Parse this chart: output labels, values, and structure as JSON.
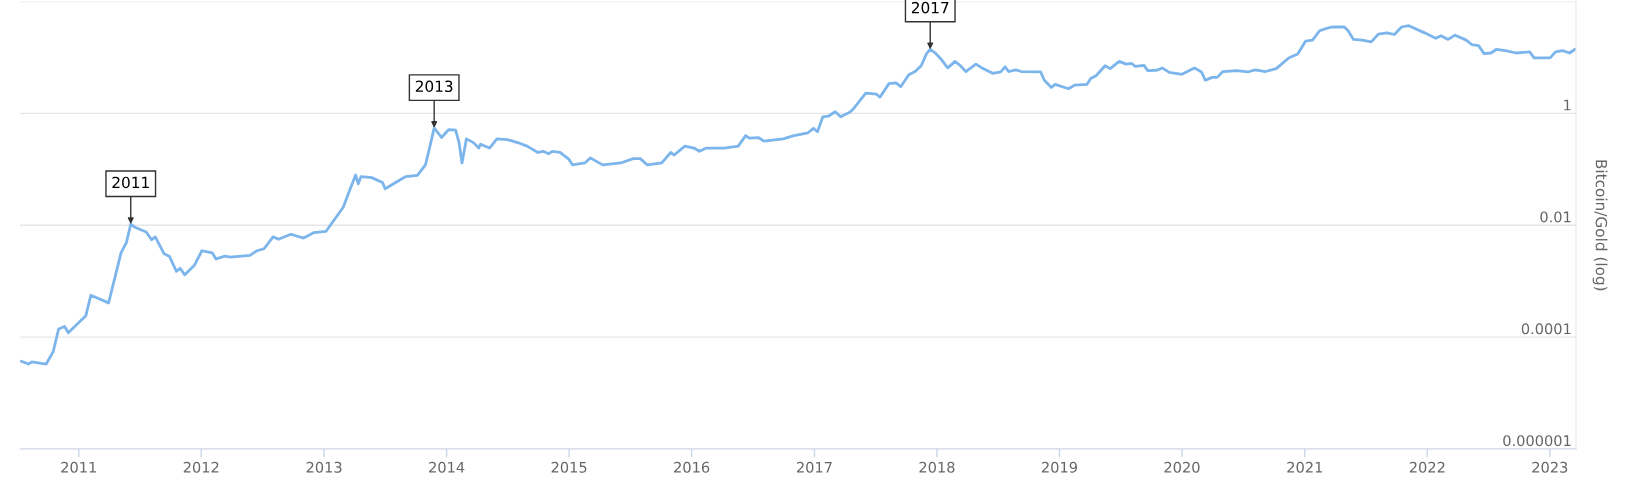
{
  "chart_data": {
    "type": "line",
    "ylabel": "Bitcoin/Gold (log)",
    "log": true,
    "grid": "y",
    "ylim": [
      1e-06,
      100
    ],
    "yticks": [
      {
        "value": 1e-06,
        "label": "0.000001"
      },
      0.0001,
      0.01,
      1,
      {
        "value": 100,
        "label": null
      }
    ],
    "xlim": [
      "2010-07-10",
      "2023-03-20"
    ],
    "xticks": [
      "2011",
      "2012",
      "2013",
      "2014",
      "2015",
      "2016",
      "2017",
      "2018",
      "2019",
      "2020",
      "2021",
      "2022",
      "2023"
    ],
    "annotations": [
      {
        "text": "2011",
        "x": "2011-06-05",
        "y": 0.0105
      },
      {
        "text": "2013",
        "x": "2013-11-25",
        "y": 0.55
      },
      {
        "text": "2017",
        "x": "2017-12-12",
        "y": 14
      }
    ],
    "x": [
      "2010-07-14",
      "2010-08-04",
      "2010-08-14",
      "2010-09-26",
      "2010-10-17",
      "2010-11-02",
      "2010-11-20",
      "2010-12-01",
      "2011-01-22",
      "2011-02-06",
      "2011-03-31",
      "2011-05-07",
      "2011-05-23",
      "2011-06-05",
      "2011-06-19",
      "2011-07-21",
      "2011-08-06",
      "2011-08-17",
      "2011-09-12",
      "2011-09-28",
      "2011-10-19",
      "2011-10-30",
      "2011-11-13",
      "2011-12-11",
      "2012-01-03",
      "2012-02-03",
      "2012-02-14",
      "2012-03-12",
      "2012-03-28",
      "2012-05-25",
      "2012-06-15",
      "2012-07-06",
      "2012-08-02",
      "2012-08-18",
      "2012-09-24",
      "2012-11-01",
      "2012-12-02",
      "2013-01-07",
      "2013-02-27",
      "2013-03-20",
      "2013-04-05",
      "2013-04-13",
      "2013-04-21",
      "2013-05-23",
      "2013-06-24",
      "2013-07-02",
      "2013-08-16",
      "2013-09-01",
      "2013-10-06",
      "2013-10-30",
      "2013-11-15",
      "2013-11-25",
      "2013-12-17",
      "2014-01-07",
      "2014-01-28",
      "2014-02-07",
      "2014-02-16",
      "2014-03-01",
      "2014-03-22",
      "2014-04-07",
      "2014-04-12",
      "2014-05-09",
      "2014-05-31",
      "2014-07-01",
      "2014-08-08",
      "2014-08-29",
      "2014-09-30",
      "2014-10-16",
      "2014-11-01",
      "2014-11-12",
      "2014-12-05",
      "2015-01-01",
      "2015-01-11",
      "2015-02-17",
      "2015-03-05",
      "2015-04-11",
      "2015-06-04",
      "2015-07-11",
      "2015-08-01",
      "2015-08-22",
      "2015-10-04",
      "2015-10-31",
      "2015-11-10",
      "2015-12-12",
      "2016-01-08",
      "2016-01-24",
      "2016-02-14",
      "2016-04-07",
      "2016-05-19",
      "2016-06-10",
      "2016-06-21",
      "2016-07-18",
      "2016-08-03",
      "2016-09-30",
      "2016-11-01",
      "2016-12-13",
      "2016-12-29",
      "2017-01-10",
      "2017-01-26",
      "2017-02-11",
      "2017-03-04",
      "2017-03-20",
      "2017-04-16",
      "2017-04-27",
      "2017-06-03",
      "2017-07-05",
      "2017-07-15",
      "2017-08-11",
      "2017-09-01",
      "2017-09-15",
      "2017-10-09",
      "2017-10-28",
      "2017-11-15",
      "2017-12-01",
      "2017-12-12",
      "2017-12-27",
      "2018-01-12",
      "2018-02-02",
      "2018-02-24",
      "2018-03-12",
      "2018-03-28",
      "2018-04-27",
      "2018-05-15",
      "2018-06-16",
      "2018-07-10",
      "2018-07-23",
      "2018-08-03",
      "2018-08-24",
      "2018-09-09",
      "2018-11-06",
      "2018-11-17",
      "2018-12-08",
      "2018-12-19",
      "2019-01-28",
      "2019-02-15",
      "2019-03-24",
      "2019-04-04",
      "2019-04-20",
      "2019-05-17",
      "2019-06-01",
      "2019-06-28",
      "2019-07-19",
      "2019-08-04",
      "2019-08-15",
      "2019-09-10",
      "2019-09-21",
      "2019-10-18",
      "2019-11-03",
      "2019-11-24",
      "2020-01-01",
      "2020-02-07",
      "2020-02-28",
      "2020-03-11",
      "2020-03-31",
      "2020-04-15",
      "2020-05-02",
      "2020-06-13",
      "2020-07-15",
      "2020-08-06",
      "2020-09-06",
      "2020-10-08",
      "2020-11-14",
      "2020-12-11",
      "2021-01-03",
      "2021-01-24",
      "2021-02-14",
      "2021-03-07",
      "2021-03-23",
      "2021-04-29",
      "2021-05-10",
      "2021-05-26",
      "2021-06-21",
      "2021-07-18",
      "2021-08-08",
      "2021-09-03",
      "2021-09-25",
      "2021-10-16",
      "2021-11-07",
      "2021-12-24",
      "2022-01-26",
      "2022-02-11",
      "2022-03-04",
      "2022-03-25",
      "2022-04-27",
      "2022-05-13",
      "2022-06-03",
      "2022-06-19",
      "2022-07-10",
      "2022-07-26",
      "2022-08-22",
      "2022-09-23",
      "2022-11-02",
      "2022-11-15",
      "2023-01-02",
      "2023-01-18",
      "2023-02-08",
      "2023-03-01",
      "2023-03-17"
    ],
    "series": [
      {
        "color": "#7cb5ec",
        "values": [
          3.7e-05,
          3.3e-05,
          3.6e-05,
          3.3e-05,
          5.5e-05,
          0.00014,
          0.000155,
          0.00012,
          0.00024,
          0.00056,
          0.00041,
          0.0032,
          0.0049,
          0.0105,
          0.0091,
          0.0076,
          0.0055,
          0.0062,
          0.0031,
          0.0028,
          0.0015,
          0.0017,
          0.0013,
          0.0019,
          0.0035,
          0.0032,
          0.0025,
          0.0028,
          0.0027,
          0.0029,
          0.0035,
          0.0038,
          0.0062,
          0.0056,
          0.0069,
          0.0059,
          0.0074,
          0.0078,
          0.021,
          0.045,
          0.079,
          0.055,
          0.074,
          0.071,
          0.058,
          0.045,
          0.065,
          0.074,
          0.078,
          0.12,
          0.3,
          0.55,
          0.37,
          0.51,
          0.5,
          0.3,
          0.13,
          0.35,
          0.3,
          0.24,
          0.28,
          0.24,
          0.35,
          0.34,
          0.29,
          0.26,
          0.2,
          0.21,
          0.19,
          0.21,
          0.2,
          0.15,
          0.12,
          0.13,
          0.16,
          0.12,
          0.13,
          0.155,
          0.155,
          0.12,
          0.13,
          0.2,
          0.18,
          0.26,
          0.24,
          0.21,
          0.24,
          0.24,
          0.26,
          0.4,
          0.36,
          0.37,
          0.32,
          0.35,
          0.4,
          0.45,
          0.54,
          0.47,
          0.87,
          0.89,
          1.07,
          0.87,
          1.05,
          1.2,
          2.3,
          2.2,
          1.95,
          3.4,
          3.5,
          3.0,
          4.9,
          5.6,
          7.1,
          11.7,
          14,
          12,
          9.5,
          6.5,
          8.5,
          7.1,
          5.6,
          7.6,
          6.5,
          5.2,
          5.5,
          6.8,
          5.6,
          6.0,
          5.6,
          5.5,
          3.9,
          2.9,
          3.3,
          2.75,
          3.2,
          3.3,
          4.2,
          4.7,
          7.1,
          6.3,
          8.5,
          7.6,
          7.8,
          6.9,
          7.2,
          5.8,
          5.9,
          6.5,
          5.4,
          5.0,
          6.5,
          5.5,
          3.9,
          4.4,
          4.4,
          5.6,
          5.8,
          5.5,
          6.0,
          5.6,
          6.3,
          9.8,
          11.5,
          19.5,
          20.4,
          30,
          33,
          35,
          35,
          30,
          21,
          20.4,
          19,
          26,
          27.5,
          25.7,
          35,
          37,
          27.5,
          22,
          24.5,
          21,
          25,
          20.4,
          17,
          16.2,
          11.7,
          12,
          14,
          13.2,
          12,
          12.6,
          9.8,
          9.8,
          12.6,
          13.2,
          12,
          14
        ]
      }
    ]
  }
}
